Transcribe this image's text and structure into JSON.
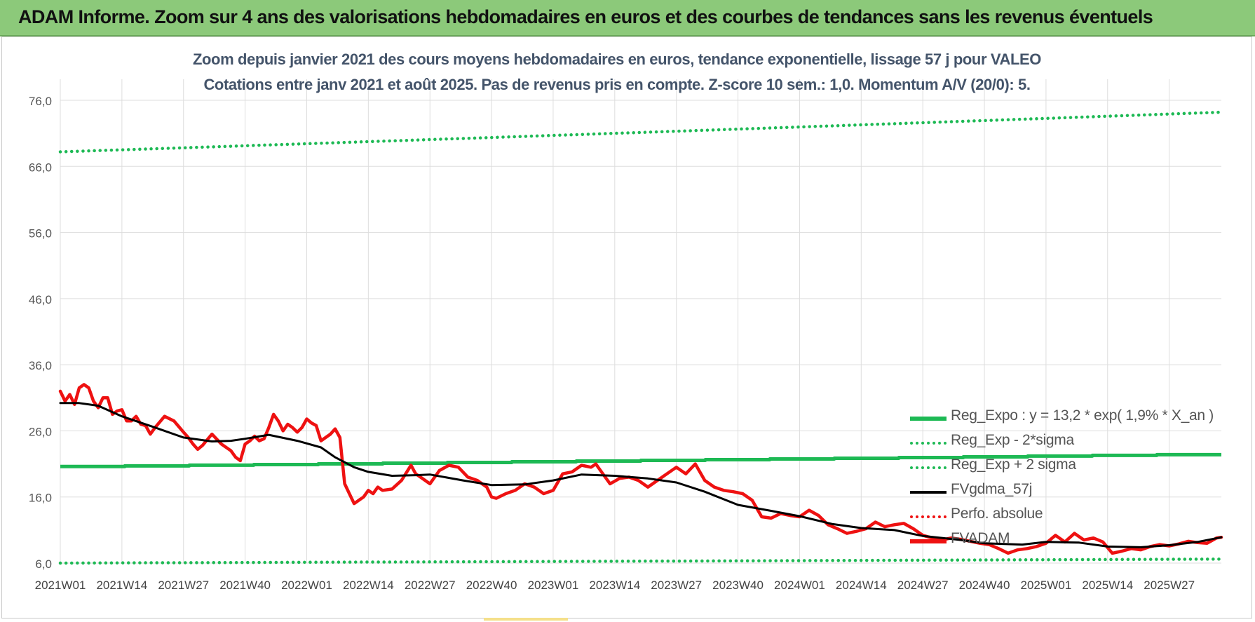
{
  "banner": {
    "title": "ADAM Informe. Zoom sur 4 ans des valorisations hebdomadaires en euros et des courbes de tendances sans les revenus éventuels"
  },
  "colors": {
    "banner_bg": "#8cc97a",
    "regression": "#1db954",
    "band": "#1db954",
    "smoothed": "#000000",
    "price": "#ee1111",
    "grid": "#dddddd",
    "title_text": "#44546a"
  },
  "chart_data": {
    "type": "line",
    "title_line1": "Zoom depuis janvier 2021 des cours moyens hebdomadaires en euros, tendance exponentielle, lissage 57 j pour VALEO",
    "title_line2": "Cotations entre janv 2021 et août 2025. Pas de revenus pris en compte. Z-score 10 sem.: 1,0. Momentum A/V (20/0): 5.",
    "ylim": [
      6,
      78
    ],
    "y_ticks": [
      "76,0",
      "66,0",
      "56,0",
      "46,0",
      "36,0",
      "26,0",
      "16,0",
      "6,0"
    ],
    "y_tick_values": [
      76,
      66,
      56,
      46,
      36,
      26,
      16,
      6
    ],
    "x_tick_labels": [
      "2021W01",
      "2021W14",
      "2021W27",
      "2021W40",
      "2022W01",
      "2022W14",
      "2022W27",
      "2022W40",
      "2023W01",
      "2023W14",
      "2023W27",
      "2023W40",
      "2024W01",
      "2024W14",
      "2024W27",
      "2024W40",
      "2025W01",
      "2025W14",
      "2025W27"
    ],
    "x_tick_weeks": [
      0,
      13,
      26,
      39,
      52,
      65,
      78,
      91,
      104,
      117,
      130,
      143,
      156,
      169,
      182,
      195,
      208,
      221,
      234
    ],
    "x_last_week": 245,
    "grid": true,
    "legend_position": "bottom-right",
    "legend": [
      {
        "label": "Reg_Expo : y = 13,2 * exp( 1,9% *  X_an )",
        "style": "solid-thick",
        "color": "#1db954"
      },
      {
        "label": "Reg_Exp - 2*sigma",
        "style": "dotted",
        "color": "#1db954"
      },
      {
        "label": "Reg_Exp + 2 sigma",
        "style": "dotted",
        "color": "#1db954"
      },
      {
        "label": "FVgdma_57j",
        "style": "solid",
        "color": "#000000"
      },
      {
        "label": "Perfo. absolue",
        "style": "dotted",
        "color": "#ee1111"
      },
      {
        "label": "FVADAM",
        "style": "solid-thick",
        "color": "#ee1111"
      }
    ],
    "series": [
      {
        "name": "Reg_Expo : y = 13,2 * exp( 1,9% *  X_an )",
        "x": [
          0,
          245
        ],
        "values": [
          20.6,
          22.4
        ]
      },
      {
        "name": "Reg_Exp - 2*sigma",
        "x": [
          0,
          245
        ],
        "values": [
          6.0,
          6.6
        ]
      },
      {
        "name": "Reg_Exp + 2 sigma",
        "x": [
          0,
          245
        ],
        "values": [
          68.2,
          74.2
        ]
      },
      {
        "name": "FVgdma_57j",
        "x": [
          0,
          4,
          8,
          13,
          20,
          26,
          32,
          36,
          39,
          44,
          50,
          55,
          58,
          62,
          65,
          70,
          75,
          78,
          85,
          91,
          98,
          104,
          110,
          117,
          124,
          130,
          136,
          143,
          150,
          156,
          163,
          169,
          176,
          182,
          190,
          195,
          203,
          208,
          215,
          221,
          228,
          234,
          240,
          245
        ],
        "values": [
          30.2,
          30.2,
          29.8,
          28.2,
          26.5,
          25.0,
          24.4,
          24.5,
          24.8,
          25.4,
          24.5,
          23.5,
          22.0,
          20.5,
          19.8,
          19.2,
          19.3,
          19.4,
          18.5,
          17.8,
          17.9,
          18.5,
          19.4,
          19.2,
          18.8,
          18.2,
          16.8,
          14.8,
          13.9,
          13.1,
          11.9,
          11.3,
          11.0,
          10.1,
          9.5,
          9.0,
          8.8,
          9.2,
          9.1,
          8.5,
          8.4,
          8.7,
          9.2,
          9.9
        ]
      },
      {
        "name": "FVADAM",
        "x": [
          0,
          1,
          2,
          3,
          4,
          5,
          6,
          7,
          8,
          9,
          10,
          11,
          12,
          13,
          14,
          15,
          16,
          17,
          18,
          19,
          20,
          22,
          24,
          26,
          27,
          28,
          29,
          30,
          32,
          34,
          36,
          37,
          38,
          39,
          40,
          41,
          42,
          43,
          44,
          45,
          46,
          47,
          48,
          49,
          50,
          51,
          52,
          53,
          54,
          55,
          56,
          57,
          58,
          59,
          60,
          61,
          62,
          63,
          64,
          65,
          66,
          67,
          68,
          70,
          72,
          74,
          75,
          76,
          78,
          80,
          82,
          84,
          86,
          88,
          90,
          91,
          92,
          94,
          96,
          98,
          100,
          102,
          104,
          106,
          108,
          110,
          112,
          113,
          114,
          116,
          118,
          120,
          122,
          124,
          126,
          128,
          130,
          132,
          134,
          136,
          138,
          140,
          142,
          144,
          146,
          148,
          150,
          152,
          154,
          156,
          158,
          160,
          162,
          164,
          166,
          168,
          170,
          172,
          174,
          176,
          178,
          180,
          182,
          184,
          186,
          188,
          190,
          192,
          194,
          196,
          198,
          200,
          202,
          204,
          206,
          208,
          210,
          212,
          214,
          216,
          218,
          220,
          222,
          224,
          226,
          228,
          230,
          232,
          234,
          236,
          238,
          240,
          242,
          244,
          245
        ],
        "values": [
          32.0,
          30.5,
          31.5,
          30.0,
          32.5,
          33.0,
          32.5,
          30.5,
          29.5,
          31.0,
          31.0,
          28.5,
          29.0,
          29.2,
          27.5,
          27.5,
          28.2,
          27.0,
          26.8,
          25.5,
          26.5,
          28.2,
          27.5,
          25.8,
          25.0,
          24.0,
          23.2,
          23.8,
          25.5,
          24.0,
          23.0,
          22.0,
          21.5,
          24.0,
          24.5,
          25.2,
          24.5,
          24.8,
          26.5,
          28.5,
          27.5,
          26.0,
          27.0,
          26.5,
          25.8,
          26.5,
          27.8,
          27.2,
          26.8,
          24.5,
          25.0,
          25.5,
          26.3,
          25.0,
          18.0,
          16.5,
          15.0,
          15.5,
          16.0,
          17.0,
          16.5,
          17.5,
          17.0,
          17.2,
          18.5,
          20.8,
          19.5,
          19.0,
          18.0,
          20.0,
          20.8,
          20.5,
          19.0,
          18.5,
          17.5,
          16.0,
          15.8,
          16.5,
          17.0,
          18.0,
          17.5,
          16.5,
          17.0,
          19.5,
          19.8,
          20.8,
          20.5,
          21.0,
          20.0,
          18.0,
          18.8,
          19.0,
          18.5,
          17.5,
          18.5,
          19.5,
          20.5,
          19.5,
          21.0,
          18.5,
          17.5,
          17.0,
          16.8,
          16.5,
          15.5,
          13.0,
          12.8,
          13.5,
          13.2,
          13.0,
          14.0,
          13.2,
          11.8,
          11.2,
          10.5,
          10.8,
          11.2,
          12.2,
          11.5,
          11.8,
          12.0,
          11.2,
          10.2,
          9.8,
          9.5,
          9.8,
          9.6,
          9.3,
          9.0,
          8.8,
          8.2,
          7.5,
          8.0,
          8.2,
          8.5,
          9.0,
          10.2,
          9.2,
          10.5,
          9.5,
          9.8,
          9.2,
          7.5,
          7.8,
          8.2,
          8.0,
          8.5,
          8.8,
          8.6,
          8.9,
          9.3,
          9.1,
          9.0,
          9.8,
          9.9
        ]
      }
    ]
  }
}
